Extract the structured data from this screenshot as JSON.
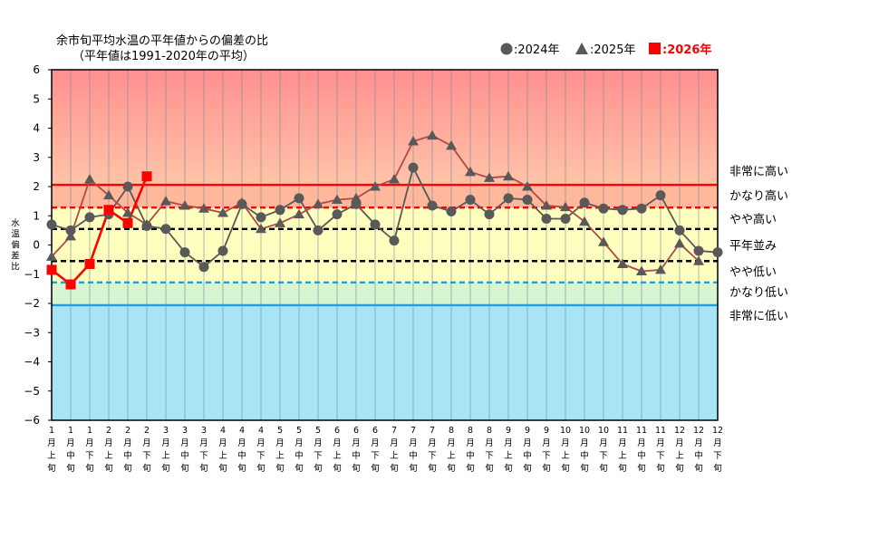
{
  "chart_data": {
    "type": "line",
    "title": "余市旬平均水温の平年値からの偏差の比",
    "subtitle": "（平年値は1991-2020年の平均）",
    "ylabel": "水温偏差比",
    "ylim": [
      -6,
      6
    ],
    "yticks": [
      -6,
      -5,
      -4,
      -3,
      -2,
      -1,
      0,
      1,
      2,
      3,
      4,
      5,
      6
    ],
    "categories": [
      "1月上旬",
      "1月中旬",
      "1月下旬",
      "2月上旬",
      "2月中旬",
      "2月下旬",
      "3月上旬",
      "3月中旬",
      "3月下旬",
      "4月上旬",
      "4月中旬",
      "4月下旬",
      "5月上旬",
      "5月中旬",
      "5月下旬",
      "6月上旬",
      "6月中旬",
      "6月下旬",
      "7月上旬",
      "7月中旬",
      "7月下旬",
      "8月上旬",
      "8月中旬",
      "8月下旬",
      "9月上旬",
      "9月中旬",
      "9月下旬",
      "10月上旬",
      "10月中旬",
      "10月下旬",
      "11月上旬",
      "11月中旬",
      "11月下旬",
      "12月上旬",
      "12月中旬",
      "12月下旬"
    ],
    "x_months": [
      "1",
      "1",
      "1",
      "2",
      "2",
      "2",
      "3",
      "3",
      "3",
      "4",
      "4",
      "4",
      "5",
      "5",
      "5",
      "6",
      "6",
      "6",
      "7",
      "7",
      "7",
      "8",
      "8",
      "8",
      "9",
      "9",
      "9",
      "10",
      "10",
      "10",
      "11",
      "11",
      "11",
      "12",
      "12",
      "12"
    ],
    "x_month_suffix": "月",
    "x_periods": [
      "上",
      "中",
      "下",
      "上",
      "中",
      "下",
      "上",
      "中",
      "下",
      "上",
      "中",
      "下",
      "上",
      "中",
      "下",
      "上",
      "中",
      "下",
      "上",
      "中",
      "下",
      "上",
      "中",
      "下",
      "上",
      "中",
      "下",
      "上",
      "中",
      "下",
      "上",
      "中",
      "下",
      "上",
      "中",
      "下"
    ],
    "x_period_suffix": "旬",
    "series": [
      {
        "name": "2024年",
        "legend_label": "●:2024年",
        "marker": "circle",
        "color": "#595959",
        "values": [
          0.7,
          0.5,
          0.95,
          1.05,
          2.0,
          0.65,
          0.55,
          -0.25,
          -0.75,
          -0.2,
          1.4,
          0.95,
          1.2,
          1.6,
          0.5,
          1.05,
          1.4,
          0.7,
          0.15,
          2.65,
          1.35,
          1.15,
          1.55,
          1.05,
          1.6,
          1.55,
          0.9,
          0.9,
          1.45,
          1.25,
          1.2,
          1.25,
          1.7,
          0.5,
          -0.2,
          -0.25
        ]
      },
      {
        "name": "2025年",
        "legend_label": "▲:2025年",
        "marker": "triangle",
        "color": "#595959",
        "values": [
          -0.4,
          0.3,
          2.25,
          1.7,
          1.1,
          0.7,
          1.5,
          1.35,
          1.25,
          1.1,
          1.45,
          0.55,
          0.75,
          1.05,
          1.4,
          1.55,
          1.6,
          2.0,
          2.25,
          3.55,
          3.75,
          3.4,
          2.5,
          2.3,
          2.35,
          2.0,
          1.35,
          1.3,
          0.8,
          0.1,
          -0.65,
          -0.9,
          -0.85,
          0.05,
          -0.55,
          null
        ]
      },
      {
        "name": "2026年",
        "legend_label": "■:2026年",
        "marker": "square",
        "color": "#ff0000",
        "values": [
          -0.85,
          -1.35,
          -0.65,
          1.2,
          0.75,
          2.35,
          null,
          null,
          null,
          null,
          null,
          null,
          null,
          null,
          null,
          null,
          null,
          null,
          null,
          null,
          null,
          null,
          null,
          null,
          null,
          null,
          null,
          null,
          null,
          null,
          null,
          null,
          null,
          null,
          null,
          null
        ]
      }
    ],
    "thresholds": [
      {
        "name": "非常に高い",
        "value": 2.06,
        "color": "#ff0000",
        "style": "solid"
      },
      {
        "name": "かなり高い",
        "value": 1.28,
        "color": "#ff0000",
        "style": "dashed"
      },
      {
        "name": "やや高い",
        "value": 0.55,
        "color": "#000000",
        "style": "dashed"
      },
      {
        "name": "やや低い",
        "value": -0.55,
        "color": "#000000",
        "style": "dashed"
      },
      {
        "name": "かなり低い",
        "value": -1.28,
        "color": "#1ea0e0",
        "style": "dashed"
      },
      {
        "name": "非常に低い",
        "value": -2.06,
        "color": "#1ea0e0",
        "style": "solid"
      }
    ],
    "band_labels": [
      "非常に高い",
      "かなり高い",
      "やや高い",
      "平年並み",
      "やや低い",
      "かなり低い",
      "非常に低い"
    ],
    "band_label_values": [
      2.55,
      1.7,
      0.9,
      0.0,
      -0.9,
      -1.6,
      -2.4
    ],
    "bands": {
      "very_high_top": "#ff8f8f",
      "very_high_bottom": "#ffc4a8",
      "high": "#ffb89c",
      "normal": "#ffffc0",
      "low": "#d6f5d0",
      "very_low": "#a8e4f4"
    }
  }
}
